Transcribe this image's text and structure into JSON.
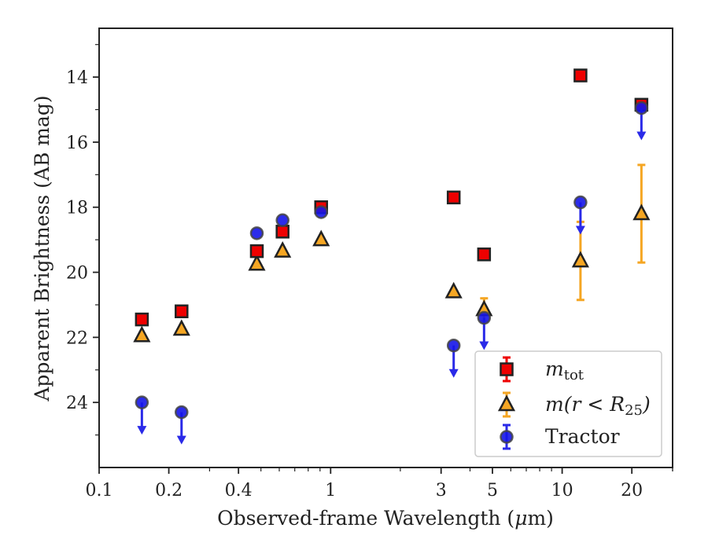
{
  "chart_data": {
    "type": "scatter",
    "xlabel_text": "Observed-frame Wavelength (",
    "xlabel_unit_greek": "μ",
    "xlabel_unit_rest": "m)",
    "ylabel": "Apparent Brightness (AB mag)",
    "x_scale": "log",
    "y_inverted": true,
    "xlim": [
      0.1,
      30
    ],
    "ylim": [
      12.5,
      26.0
    ],
    "x_ticks": [
      0.1,
      0.2,
      0.4,
      1,
      3,
      5,
      10,
      20
    ],
    "x_tick_labels": [
      "0.1",
      "0.2",
      "0.4",
      "1",
      "3",
      "5",
      "10",
      "20"
    ],
    "y_ticks": [
      14,
      16,
      18,
      20,
      22,
      24
    ],
    "y_tick_labels": [
      "14",
      "16",
      "18",
      "20",
      "22",
      "24"
    ],
    "grid": false,
    "legend_position": "lower-right",
    "series": [
      {
        "legend_label": "m_tot",
        "marker": "square",
        "fill": "#ee0000",
        "errorbar_color": "#ee0000",
        "points": [
          {
            "x": 0.153,
            "y": 21.45
          },
          {
            "x": 0.227,
            "y": 21.2
          },
          {
            "x": 0.48,
            "y": 19.35
          },
          {
            "x": 0.62,
            "y": 18.75
          },
          {
            "x": 0.91,
            "y": 18.0
          },
          {
            "x": 3.4,
            "y": 17.7
          },
          {
            "x": 4.6,
            "y": 19.45
          },
          {
            "x": 12.0,
            "y": 13.95
          },
          {
            "x": 22.0,
            "y": 14.85
          }
        ]
      },
      {
        "legend_label": "m(r < R25)",
        "marker": "triangle",
        "fill": "#f5a623",
        "errorbar_color": "#f5a623",
        "points": [
          {
            "x": 0.153,
            "y": 21.95
          },
          {
            "x": 0.227,
            "y": 21.75
          },
          {
            "x": 0.48,
            "y": 19.75
          },
          {
            "x": 0.62,
            "y": 19.35
          },
          {
            "x": 0.91,
            "y": 19.0
          },
          {
            "x": 3.4,
            "y": 20.6
          },
          {
            "x": 4.6,
            "y": 21.15,
            "err": 0.35
          },
          {
            "x": 12.0,
            "y": 19.65,
            "err": 1.2
          },
          {
            "x": 22.0,
            "y": 18.2,
            "err": 1.5
          }
        ]
      },
      {
        "legend_label": "Tractor",
        "marker": "circle",
        "fill": "#1515e8",
        "errorbar_color": "#2a2ae8",
        "points": [
          {
            "x": 0.153,
            "y": 24.0,
            "upper_limit": true
          },
          {
            "x": 0.227,
            "y": 24.3,
            "upper_limit": true
          },
          {
            "x": 0.48,
            "y": 18.8
          },
          {
            "x": 0.62,
            "y": 18.4
          },
          {
            "x": 0.91,
            "y": 18.15
          },
          {
            "x": 3.4,
            "y": 22.25,
            "upper_limit": true
          },
          {
            "x": 4.6,
            "y": 21.4,
            "upper_limit": true
          },
          {
            "x": 12.0,
            "y": 17.85,
            "upper_limit": true
          },
          {
            "x": 22.0,
            "y": 14.95,
            "upper_limit": true
          }
        ]
      }
    ]
  }
}
